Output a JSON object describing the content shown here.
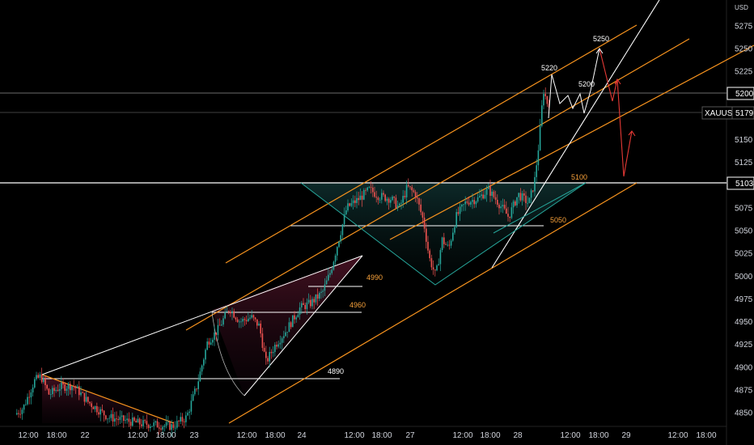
{
  "chart_data": {
    "type": "candlestick",
    "symbol": "XAUUSD",
    "currency": "USD",
    "last_price": "5179",
    "marked_price": "5200",
    "box_price": "5103",
    "y_range": [
      4840,
      5290
    ],
    "y_ticks": [
      4850,
      4875,
      4900,
      4925,
      4950,
      4975,
      5000,
      5025,
      5050,
      5075,
      5100,
      5125,
      5150,
      5175,
      5200,
      5225,
      5250,
      5275
    ],
    "x_ticks": [
      "12:00",
      "18:00",
      "22",
      "12:00",
      "18:00",
      "23",
      "12:00",
      "18:00",
      "24",
      "12:00",
      "18:00",
      "27",
      "12:00",
      "18:00",
      "28",
      "12:00",
      "18:00",
      "29",
      "12:00",
      "18:00"
    ],
    "level_labels": [
      {
        "text": "4890",
        "price": 4890
      },
      {
        "text": "4960",
        "price": 4960
      },
      {
        "text": "4990",
        "price": 4990
      },
      {
        "text": "5050",
        "price": 5050
      },
      {
        "text": "5100",
        "price": 5100
      }
    ],
    "projection_labels": [
      {
        "text": "5220",
        "price": 5220
      },
      {
        "text": "5200",
        "price": 5200
      },
      {
        "text": "5250",
        "price": 5250
      }
    ],
    "colors": {
      "up": "#26a69a",
      "down": "#ef5350",
      "channel": "#f7931e",
      "neckline": "#26a69a",
      "path_down": "#e53935",
      "trend": "#ffffff"
    }
  }
}
